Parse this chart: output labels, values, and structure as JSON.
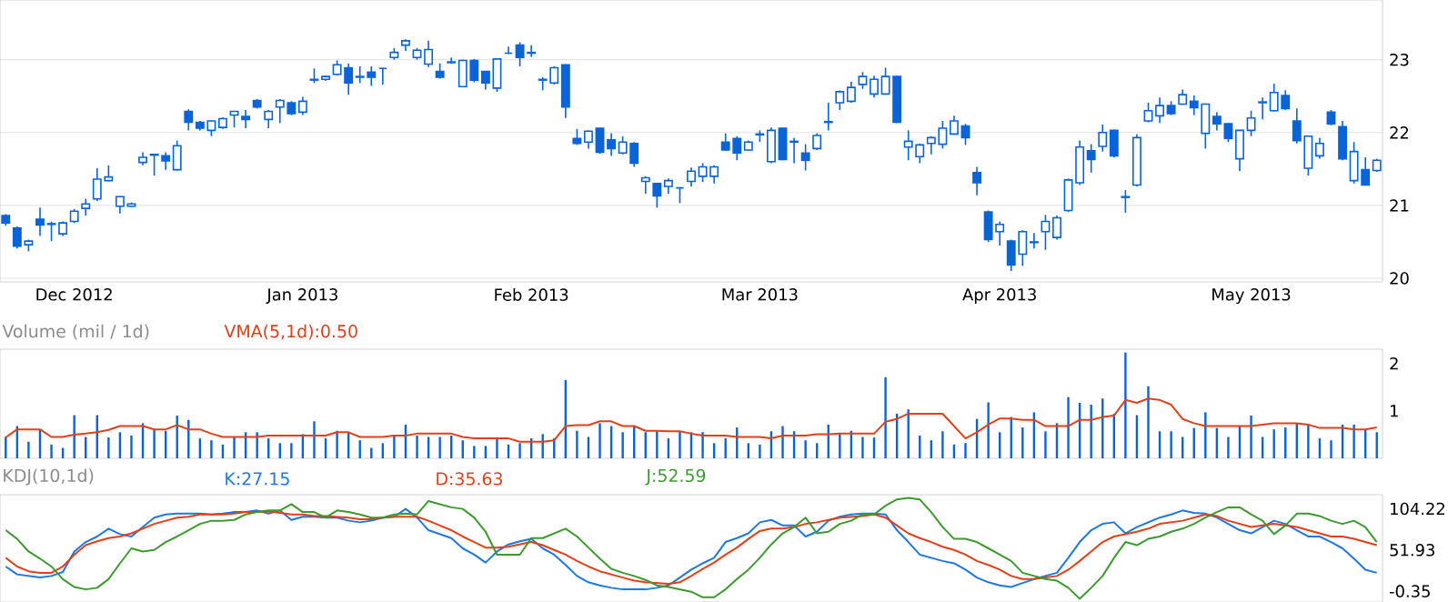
{
  "chart_data": [
    {
      "type": "candlestick",
      "color": "#0a64d8",
      "categories": [
        null,
        null,
        null,
        null,
        null,
        null,
        "Dec 2012",
        null,
        null,
        null,
        null,
        null,
        null,
        null,
        null,
        null,
        null,
        null,
        null,
        null,
        null,
        null,
        null,
        null,
        null,
        null,
        "Jan 2013",
        null,
        null,
        null,
        null,
        null,
        null,
        null,
        null,
        null,
        null,
        null,
        null,
        null,
        null,
        null,
        null,
        null,
        null,
        null,
        "Feb 2013",
        null,
        null,
        null,
        null,
        null,
        null,
        null,
        null,
        null,
        null,
        null,
        null,
        null,
        null,
        null,
        null,
        null,
        null,
        null,
        "Mar 2013",
        null,
        null,
        null,
        null,
        null,
        null,
        null,
        null,
        null,
        null,
        null,
        null,
        null,
        null,
        null,
        null,
        null,
        null,
        null,
        null,
        "Apr 2013",
        null,
        null,
        null,
        null,
        null,
        null,
        null,
        null,
        null,
        null,
        null,
        null,
        null,
        null,
        null,
        null,
        null,
        null,
        null,
        null,
        null,
        "May 2013",
        null,
        null,
        null,
        null,
        null,
        null,
        null,
        null,
        null,
        null,
        null
      ],
      "ohlc": [
        [
          20.86,
          20.88,
          20.72,
          20.76
        ],
        [
          20.69,
          20.71,
          20.41,
          20.44
        ],
        [
          20.46,
          20.53,
          20.37,
          20.51
        ],
        [
          20.81,
          20.97,
          20.58,
          20.73
        ],
        [
          20.74,
          20.78,
          20.51,
          20.75
        ],
        [
          20.61,
          20.78,
          20.58,
          20.76
        ],
        [
          20.78,
          20.95,
          20.76,
          20.92
        ],
        [
          20.96,
          21.09,
          20.86,
          21.02
        ],
        [
          21.09,
          21.51,
          21.06,
          21.36
        ],
        [
          21.34,
          21.55,
          21.33,
          21.39
        ],
        [
          20.99,
          21.12,
          20.89,
          21.12
        ],
        [
          20.99,
          21.04,
          20.98,
          21.02
        ],
        [
          21.59,
          21.73,
          21.55,
          21.66
        ],
        [
          21.69,
          21.7,
          21.41,
          21.7
        ],
        [
          21.68,
          21.73,
          21.49,
          21.61
        ],
        [
          21.49,
          21.89,
          21.48,
          21.82
        ],
        [
          22.29,
          22.32,
          22.03,
          22.14
        ],
        [
          22.14,
          22.16,
          22.03,
          22.06
        ],
        [
          22.03,
          22.17,
          21.95,
          22.16
        ],
        [
          22.07,
          22.21,
          22.05,
          22.19
        ],
        [
          22.24,
          22.29,
          22.07,
          22.29
        ],
        [
          22.22,
          22.31,
          22.06,
          22.18
        ],
        [
          22.44,
          22.46,
          22.33,
          22.35
        ],
        [
          22.18,
          22.31,
          22.06,
          22.29
        ],
        [
          22.35,
          22.46,
          22.13,
          22.44
        ],
        [
          22.41,
          22.43,
          22.24,
          22.26
        ],
        [
          22.28,
          22.49,
          22.24,
          22.43
        ],
        [
          22.72,
          22.88,
          22.68,
          22.73
        ],
        [
          22.73,
          22.78,
          22.71,
          22.77
        ],
        [
          22.8,
          22.99,
          22.79,
          22.93
        ],
        [
          22.89,
          22.95,
          22.52,
          22.68
        ],
        [
          22.76,
          22.91,
          22.68,
          22.77
        ],
        [
          22.83,
          22.91,
          22.64,
          22.76
        ],
        [
          22.88,
          22.89,
          22.66,
          22.88
        ],
        [
          23.03,
          23.16,
          23.0,
          23.1
        ],
        [
          23.2,
          23.28,
          23.12,
          23.26
        ],
        [
          23.03,
          23.16,
          23.0,
          23.13
        ],
        [
          22.94,
          23.26,
          22.9,
          23.14
        ],
        [
          22.84,
          22.95,
          22.74,
          22.76
        ],
        [
          22.96,
          23.03,
          22.95,
          22.97
        ],
        [
          22.63,
          23.0,
          22.62,
          22.99
        ],
        [
          22.99,
          23.01,
          22.69,
          22.72
        ],
        [
          22.84,
          22.84,
          22.59,
          22.68
        ],
        [
          22.61,
          23.01,
          22.56,
          23.01
        ],
        [
          23.09,
          23.18,
          23.08,
          23.09
        ],
        [
          23.2,
          23.24,
          22.91,
          23.03
        ],
        [
          23.09,
          23.2,
          23.04,
          23.1
        ],
        [
          22.72,
          22.76,
          22.58,
          22.73
        ],
        [
          22.68,
          22.91,
          22.66,
          22.89
        ],
        [
          22.93,
          22.94,
          22.2,
          22.35
        ],
        [
          21.92,
          22.05,
          21.83,
          21.85
        ],
        [
          21.87,
          22.03,
          21.78,
          22.02
        ],
        [
          22.06,
          22.07,
          21.71,
          21.73
        ],
        [
          21.9,
          21.99,
          21.68,
          21.78
        ],
        [
          21.72,
          21.95,
          21.7,
          21.87
        ],
        [
          21.85,
          21.87,
          21.53,
          21.58
        ],
        [
          21.33,
          21.4,
          21.16,
          21.38
        ],
        [
          21.3,
          21.3,
          20.97,
          21.13
        ],
        [
          21.26,
          21.37,
          21.16,
          21.34
        ],
        [
          21.24,
          21.25,
          21.03,
          21.24
        ],
        [
          21.33,
          21.52,
          21.26,
          21.47
        ],
        [
          21.4,
          21.58,
          21.32,
          21.53
        ],
        [
          21.4,
          21.55,
          21.3,
          21.53
        ],
        [
          21.87,
          21.99,
          21.75,
          21.76
        ],
        [
          21.92,
          21.95,
          21.62,
          21.72
        ],
        [
          21.76,
          21.89,
          21.75,
          21.87
        ],
        [
          21.97,
          22.03,
          21.87,
          21.98
        ],
        [
          21.6,
          22.07,
          21.58,
          22.03
        ],
        [
          22.06,
          22.07,
          21.62,
          21.63
        ],
        [
          21.87,
          21.93,
          21.58,
          21.88
        ],
        [
          21.72,
          21.84,
          21.48,
          21.62
        ],
        [
          21.78,
          21.99,
          21.76,
          21.96
        ],
        [
          22.14,
          22.41,
          22.03,
          22.15
        ],
        [
          22.41,
          22.58,
          22.31,
          22.56
        ],
        [
          22.43,
          22.7,
          22.41,
          22.62
        ],
        [
          22.66,
          22.83,
          22.6,
          22.77
        ],
        [
          22.53,
          22.78,
          22.48,
          22.73
        ],
        [
          22.53,
          22.89,
          22.52,
          22.77
        ],
        [
          22.77,
          22.78,
          22.13,
          22.14
        ],
        [
          21.8,
          22.03,
          21.62,
          21.88
        ],
        [
          21.67,
          21.85,
          21.58,
          21.83
        ],
        [
          21.85,
          21.95,
          21.7,
          21.93
        ],
        [
          21.84,
          22.16,
          21.78,
          22.06
        ],
        [
          21.98,
          22.23,
          21.97,
          22.16
        ],
        [
          22.09,
          22.12,
          21.83,
          21.93
        ],
        [
          21.45,
          21.53,
          21.14,
          21.31
        ],
        [
          20.91,
          20.93,
          20.5,
          20.53
        ],
        [
          20.64,
          20.78,
          20.45,
          20.74
        ],
        [
          20.51,
          20.53,
          20.1,
          20.18
        ],
        [
          20.33,
          20.66,
          20.17,
          20.64
        ],
        [
          20.49,
          20.62,
          20.41,
          20.5
        ],
        [
          20.64,
          20.87,
          20.39,
          20.78
        ],
        [
          20.56,
          20.86,
          20.53,
          20.83
        ],
        [
          20.93,
          21.37,
          20.91,
          21.35
        ],
        [
          21.31,
          21.89,
          21.28,
          21.8
        ],
        [
          21.75,
          21.84,
          21.45,
          21.63
        ],
        [
          21.81,
          22.11,
          21.74,
          22.0
        ],
        [
          22.03,
          22.04,
          21.66,
          21.68
        ],
        [
          21.11,
          21.21,
          20.9,
          21.12
        ],
        [
          21.28,
          21.98,
          21.26,
          21.93
        ],
        [
          22.16,
          22.41,
          22.14,
          22.3
        ],
        [
          22.23,
          22.48,
          22.13,
          22.37
        ],
        [
          22.37,
          22.43,
          22.24,
          22.26
        ],
        [
          22.39,
          22.59,
          22.38,
          22.52
        ],
        [
          22.43,
          22.51,
          22.24,
          22.34
        ],
        [
          21.99,
          22.4,
          21.78,
          22.39
        ],
        [
          22.22,
          22.28,
          22.03,
          22.12
        ],
        [
          22.12,
          22.13,
          21.87,
          21.92
        ],
        [
          21.64,
          22.04,
          21.47,
          22.03
        ],
        [
          22.03,
          22.3,
          21.95,
          22.2
        ],
        [
          22.41,
          22.48,
          22.18,
          22.42
        ],
        [
          22.3,
          22.67,
          22.29,
          22.55
        ],
        [
          22.51,
          22.58,
          22.31,
          22.33
        ],
        [
          22.16,
          22.33,
          21.85,
          21.89
        ],
        [
          21.51,
          21.96,
          21.41,
          21.95
        ],
        [
          21.68,
          21.93,
          21.64,
          21.85
        ],
        [
          22.28,
          22.31,
          22.1,
          22.12
        ],
        [
          22.08,
          22.16,
          21.62,
          21.64
        ],
        [
          21.34,
          21.87,
          21.3,
          21.74
        ],
        [
          21.49,
          21.66,
          21.28,
          21.28
        ],
        [
          21.48,
          21.64,
          21.46,
          21.62
        ]
      ],
      "ylim": [
        19.95,
        23.82
      ],
      "yticks": [
        20,
        21,
        22,
        23
      ],
      "grid": "y"
    },
    {
      "type": "bar",
      "title": "Volume (mil / 1d)",
      "legend": "top left",
      "categories": [
        null,
        null,
        null,
        null,
        null,
        null,
        null,
        null,
        null,
        null,
        null,
        null,
        null,
        null,
        null,
        null,
        null,
        null,
        null,
        null,
        null,
        null,
        null,
        null,
        null,
        null,
        null,
        null,
        null,
        null,
        null,
        null,
        null,
        null,
        null,
        null,
        null,
        null,
        null,
        null,
        null,
        null,
        null,
        null,
        null,
        null,
        null,
        null,
        null,
        null,
        null,
        null,
        null,
        null,
        null,
        null,
        null,
        null,
        null,
        null,
        null,
        null,
        null,
        null,
        null,
        null,
        null,
        null,
        null,
        null,
        null,
        null,
        null,
        null,
        null,
        null,
        null,
        null,
        null,
        null,
        null,
        null,
        null,
        null,
        null,
        null,
        null,
        null,
        null,
        null,
        null,
        null,
        null,
        null,
        null,
        null,
        null,
        null,
        null,
        null,
        null,
        null,
        null,
        null,
        null,
        null,
        null,
        null,
        null,
        null,
        null,
        null,
        null,
        null,
        null,
        null,
        null,
        null,
        null,
        null,
        null
      ],
      "series": [
        {
          "type": "bar",
          "color": "#0a64d8",
          "values": [
            0.45,
            0.68,
            0.35,
            0.61,
            0.29,
            0.22,
            0.91,
            0.45,
            0.91,
            0.44,
            0.55,
            0.48,
            0.74,
            0.61,
            0.58,
            0.9,
            0.81,
            0.42,
            0.38,
            0.29,
            0.45,
            0.55,
            0.55,
            0.42,
            0.32,
            0.32,
            0.51,
            0.78,
            0.42,
            0.58,
            0.55,
            0.38,
            0.22,
            0.32,
            0.48,
            0.71,
            0.48,
            0.45,
            0.45,
            0.48,
            0.38,
            0.26,
            0.26,
            0.42,
            0.29,
            0.32,
            0.42,
            0.51,
            0.42,
            1.65,
            0.58,
            0.45,
            0.74,
            0.68,
            0.55,
            0.68,
            0.55,
            0.57,
            0.42,
            0.57,
            0.55,
            0.55,
            0.32,
            0.42,
            0.65,
            0.32,
            0.29,
            0.57,
            0.68,
            0.57,
            0.38,
            0.32,
            0.71,
            0.51,
            0.58,
            0.45,
            0.44,
            1.71,
            0.94,
            1.03,
            0.48,
            0.38,
            0.57,
            0.29,
            0.32,
            0.83,
            1.18,
            0.55,
            0.87,
            0.65,
            0.97,
            0.57,
            0.74,
            1.29,
            1.17,
            1.13,
            1.26,
            0.94,
            2.23,
            0.91,
            1.52,
            0.57,
            0.57,
            0.45,
            0.64,
            0.97,
            0.64,
            0.45,
            0.68,
            0.9,
            0.45,
            0.61,
            0.65,
            0.74,
            0.71,
            0.42,
            0.38,
            0.71,
            0.71,
            0.61,
            0.55
          ]
        },
        {
          "type": "line",
          "name": "VMA(5,1d):0.50",
          "color": "#e0401a",
          "values": [
            0.44,
            0.61,
            0.61,
            0.61,
            0.45,
            0.45,
            0.5,
            0.52,
            0.55,
            0.6,
            0.68,
            0.68,
            0.68,
            0.61,
            0.61,
            0.7,
            0.61,
            0.61,
            0.52,
            0.45,
            0.45,
            0.45,
            0.45,
            0.48,
            0.48,
            0.48,
            0.48,
            0.48,
            0.48,
            0.55,
            0.55,
            0.45,
            0.45,
            0.45,
            0.48,
            0.48,
            0.52,
            0.52,
            0.52,
            0.52,
            0.45,
            0.42,
            0.42,
            0.42,
            0.42,
            0.35,
            0.35,
            0.35,
            0.38,
            0.68,
            0.7,
            0.7,
            0.78,
            0.78,
            0.68,
            0.68,
            0.58,
            0.58,
            0.57,
            0.57,
            0.52,
            0.48,
            0.48,
            0.48,
            0.45,
            0.45,
            0.45,
            0.42,
            0.48,
            0.48,
            0.48,
            0.51,
            0.51,
            0.52,
            0.52,
            0.52,
            0.52,
            0.77,
            0.83,
            0.94,
            0.94,
            0.94,
            0.94,
            0.68,
            0.42,
            0.55,
            0.71,
            0.84,
            0.84,
            0.81,
            0.81,
            0.68,
            0.68,
            0.68,
            0.81,
            0.81,
            0.87,
            0.9,
            1.23,
            1.17,
            1.26,
            1.23,
            1.13,
            0.83,
            0.74,
            0.68,
            0.68,
            0.68,
            0.68,
            0.68,
            0.71,
            0.74,
            0.74,
            0.74,
            0.71,
            0.64,
            0.64,
            0.64,
            0.61,
            0.61,
            0.65
          ]
        }
      ],
      "ylim": [
        0,
        2.3
      ],
      "yticks": [
        1,
        2
      ]
    },
    {
      "type": "line",
      "title": "KDJ(10,1d)",
      "legend": "top left",
      "categories": [
        null,
        null,
        null,
        null,
        null,
        null,
        null,
        null,
        null,
        null,
        null,
        null,
        null,
        null,
        null,
        null,
        null,
        null,
        null,
        null,
        null,
        null,
        null,
        null,
        null,
        null,
        null,
        null,
        null,
        null,
        null,
        null,
        null,
        null,
        null,
        null,
        null,
        null,
        null,
        null,
        null,
        null,
        null,
        null,
        null,
        null,
        null,
        null,
        null,
        null,
        null,
        null,
        null,
        null,
        null,
        null,
        null,
        null,
        null,
        null,
        null,
        null,
        null,
        null,
        null,
        null,
        null,
        null,
        null,
        null,
        null,
        null,
        null,
        null,
        null,
        null,
        null,
        null,
        null,
        null,
        null,
        null,
        null,
        null,
        null,
        null,
        null,
        null,
        null,
        null,
        null,
        null,
        null,
        null,
        null,
        null,
        null,
        null,
        null,
        null,
        null,
        null,
        null,
        null,
        null,
        null,
        null,
        null,
        null,
        null,
        null,
        null,
        null,
        null,
        null,
        null,
        null,
        null,
        null,
        null,
        null
      ],
      "series": [
        {
          "name": "K:27.15",
          "color": "#1e78e0",
          "values": [
            31,
            21,
            19,
            17,
            19,
            24,
            50,
            62,
            69,
            79,
            72,
            69,
            81,
            93,
            97,
            98,
            98,
            98,
            97,
            98,
            100,
            100,
            102,
            98,
            102,
            90,
            94,
            94,
            93,
            93,
            89,
            87,
            89,
            93,
            94,
            104,
            93,
            77,
            72,
            67,
            54,
            46,
            36,
            50,
            59,
            63,
            66,
            54,
            46,
            33,
            19,
            11,
            7,
            4,
            2,
            2,
            2,
            4,
            7,
            17,
            27,
            35,
            42,
            62,
            67,
            73,
            87,
            90,
            83,
            83,
            69,
            75,
            89,
            94,
            97,
            98,
            98,
            97,
            77,
            62,
            46,
            42,
            38,
            35,
            27,
            17,
            11,
            7,
            5,
            10,
            15,
            19,
            23,
            42,
            62,
            77,
            85,
            87,
            73,
            81,
            87,
            93,
            97,
            102,
            99,
            98,
            93,
            85,
            77,
            73,
            81,
            89,
            85,
            77,
            69,
            69,
            62,
            54,
            41,
            27,
            23
          ]
        },
        {
          "name": "D:35.63",
          "color": "#e0401a",
          "values": [
            42,
            31,
            25,
            23,
            23,
            31,
            46,
            58,
            63,
            67,
            69,
            73,
            79,
            85,
            89,
            93,
            94,
            97,
            97,
            97,
            98,
            100,
            100,
            101,
            99,
            97,
            97,
            95,
            95,
            94,
            93,
            91,
            91,
            93,
            94,
            94,
            94,
            89,
            83,
            77,
            69,
            62,
            55,
            55,
            56,
            59,
            62,
            58,
            52,
            46,
            38,
            31,
            25,
            21,
            17,
            13,
            11,
            10,
            9,
            11,
            19,
            28,
            36,
            46,
            55,
            66,
            76,
            79,
            79,
            81,
            85,
            87,
            90,
            93,
            94,
            95,
            97,
            93,
            83,
            73,
            67,
            62,
            56,
            52,
            46,
            38,
            33,
            27,
            19,
            15,
            15,
            17,
            19,
            27,
            38,
            50,
            62,
            69,
            72,
            75,
            79,
            85,
            87,
            89,
            93,
            97,
            95,
            89,
            85,
            81,
            83,
            85,
            83,
            81,
            77,
            73,
            69,
            69,
            66,
            62,
            58
          ]
        },
        {
          "name": "J:52.59",
          "color": "#3c9a2e",
          "values": [
            77,
            66,
            50,
            41,
            31,
            15,
            5,
            2,
            4,
            15,
            35,
            54,
            50,
            52,
            62,
            69,
            77,
            85,
            89,
            89,
            90,
            97,
            100,
            102,
            102,
            110,
            100,
            100,
            93,
            102,
            100,
            97,
            93,
            93,
            97,
            98,
            97,
            114,
            110,
            106,
            104,
            93,
            75,
            46,
            46,
            46,
            67,
            67,
            73,
            79,
            69,
            55,
            41,
            28,
            23,
            19,
            14,
            7,
            5,
            2,
            -1,
            -8,
            -8,
            2,
            15,
            27,
            42,
            59,
            73,
            81,
            93,
            73,
            75,
            85,
            89,
            97,
            97,
            108,
            116,
            118,
            116,
            100,
            81,
            66,
            66,
            62,
            54,
            46,
            38,
            23,
            19,
            15,
            13,
            4,
            -10,
            4,
            19,
            42,
            62,
            58,
            66,
            69,
            75,
            79,
            85,
            93,
            100,
            106,
            106,
            97,
            89,
            72,
            83,
            98,
            98,
            95,
            89,
            85,
            89,
            81,
            62
          ]
        }
      ],
      "ylim": [
        -14,
        122
      ],
      "yticks": [
        -0.35,
        51.93,
        104.22
      ]
    }
  ]
}
